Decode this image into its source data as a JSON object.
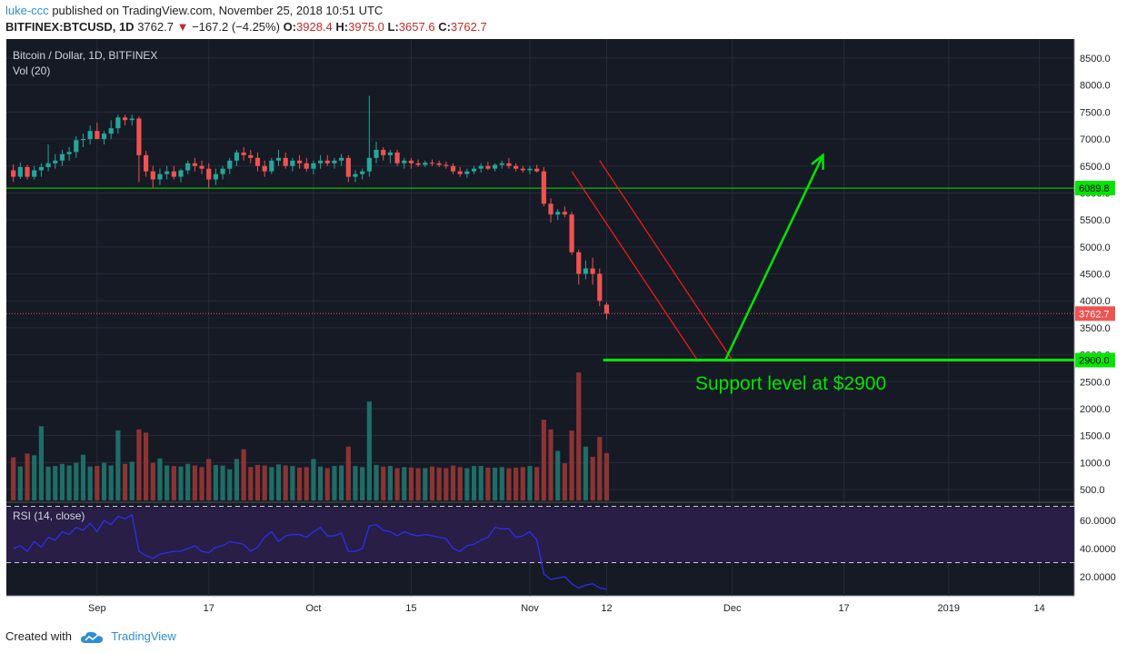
{
  "header": {
    "user": "luke-ccc",
    "published_text": "published on TradingView.com, November 25, 2018 10:51 UTC",
    "symbol": "BITFINEX:BTCUSD, 1D",
    "last": "3762.7",
    "change_arrow": "▼",
    "change": "−167.2 (−4.25%)",
    "o_label": "O:",
    "o": "3928.4",
    "h_label": "H:",
    "h": "3975.0",
    "l_label": "L:",
    "l": "3657.6",
    "c_label": "C:",
    "c": "3762.7"
  },
  "footer": {
    "created_with": "Created with",
    "brand": "TradingView",
    "logo_icon": "tradingview-cloud-icon"
  },
  "colors": {
    "background": "#161a25",
    "grid": "#262b3a",
    "up": "#26a69a",
    "down": "#ef5350",
    "vol_up": "#1f6d66",
    "vol_down": "#8b3434",
    "support": "#00e600",
    "rsi_line": "#2e2ef0",
    "rsi_band": "#2a1f4a",
    "channel": "#ff1a1a",
    "axis_text": "#d1d4dc"
  },
  "chart_data": {
    "type": "candlestick",
    "title": "Bitcoin / Dollar, 1D, BITFINEX",
    "volume_label": "Vol (20)",
    "rsi_label": "RSI (14, close)",
    "y_ticks": [
      8500,
      8000,
      7500,
      7000,
      6500,
      6000,
      5500,
      5000,
      4500,
      4000,
      3500,
      3000,
      2500,
      2000,
      1500,
      1000,
      500
    ],
    "y_tick_labels": [
      "8500.0",
      "8000.0",
      "7500.0",
      "7000.0",
      "6500.0",
      "6000.0",
      "5500.0",
      "5000.0",
      "4500.0",
      "4000.0",
      "3500.0",
      "3000.0",
      "2500.0",
      "2000.0",
      "1500.0",
      "1000.0",
      "500.0"
    ],
    "rsi_ticks": [
      60,
      40,
      20
    ],
    "rsi_tick_labels": [
      "60.0000",
      "40.0000",
      "20.0000"
    ],
    "x_ticks": [
      {
        "label": "Sep",
        "day": 12
      },
      {
        "label": "17",
        "day": 28
      },
      {
        "label": "Oct",
        "day": 43
      },
      {
        "label": "15",
        "day": 57
      },
      {
        "label": "Nov",
        "day": 74
      },
      {
        "label": "12",
        "day": 85
      },
      {
        "label": "Dec",
        "day": 103
      },
      {
        "label": "17",
        "day": 119
      },
      {
        "label": "2019",
        "day": 134
      },
      {
        "label": "14",
        "day": 147
      }
    ],
    "x_range_days": [
      -1,
      152
    ],
    "candles": [
      [
        6420,
        6530,
        6200,
        6300
      ],
      [
        6300,
        6560,
        6260,
        6480
      ],
      [
        6480,
        6520,
        6250,
        6300
      ],
      [
        6300,
        6500,
        6250,
        6420
      ],
      [
        6420,
        6550,
        6300,
        6480
      ],
      [
        6480,
        6900,
        6400,
        6550
      ],
      [
        6550,
        6720,
        6450,
        6600
      ],
      [
        6600,
        6800,
        6500,
        6720
      ],
      [
        6720,
        6850,
        6600,
        6760
      ],
      [
        6760,
        7050,
        6650,
        6980
      ],
      [
        6980,
        7100,
        6850,
        7000
      ],
      [
        7000,
        7250,
        6900,
        7150
      ],
      [
        7150,
        7300,
        7000,
        7000
      ],
      [
        7000,
        7150,
        6900,
        7100
      ],
      [
        7100,
        7350,
        7000,
        7200
      ],
      [
        7200,
        7450,
        7100,
        7400
      ],
      [
        7400,
        7450,
        7250,
        7350
      ],
      [
        7350,
        7450,
        7250,
        7380
      ],
      [
        7380,
        7420,
        6200,
        6700
      ],
      [
        6700,
        6780,
        6300,
        6400
      ],
      [
        6400,
        6500,
        6100,
        6250
      ],
      [
        6250,
        6450,
        6150,
        6350
      ],
      [
        6350,
        6500,
        6250,
        6400
      ],
      [
        6400,
        6500,
        6250,
        6300
      ],
      [
        6300,
        6450,
        6200,
        6420
      ],
      [
        6420,
        6600,
        6350,
        6550
      ],
      [
        6550,
        6650,
        6400,
        6500
      ],
      [
        6500,
        6600,
        6350,
        6450
      ],
      [
        6450,
        6550,
        6100,
        6250
      ],
      [
        6250,
        6450,
        6150,
        6350
      ],
      [
        6350,
        6500,
        6250,
        6450
      ],
      [
        6450,
        6650,
        6350,
        6600
      ],
      [
        6600,
        6800,
        6500,
        6750
      ],
      [
        6750,
        6850,
        6600,
        6700
      ],
      [
        6700,
        6800,
        6550,
        6650
      ],
      [
        6650,
        6750,
        6400,
        6500
      ],
      [
        6500,
        6600,
        6300,
        6400
      ],
      [
        6400,
        6650,
        6350,
        6600
      ],
      [
        6600,
        6800,
        6500,
        6650
      ],
      [
        6650,
        6750,
        6450,
        6500
      ],
      [
        6500,
        6650,
        6400,
        6600
      ],
      [
        6600,
        6700,
        6450,
        6550
      ],
      [
        6550,
        6650,
        6400,
        6450
      ],
      [
        6450,
        6600,
        6350,
        6550
      ],
      [
        6550,
        6700,
        6450,
        6600
      ],
      [
        6600,
        6700,
        6500,
        6550
      ],
      [
        6550,
        6650,
        6450,
        6600
      ],
      [
        6600,
        6720,
        6500,
        6650
      ],
      [
        6650,
        6700,
        6200,
        6300
      ],
      [
        6300,
        6420,
        6200,
        6350
      ],
      [
        6350,
        6450,
        6250,
        6400
      ],
      [
        6400,
        7800,
        6300,
        6650
      ],
      [
        6650,
        6950,
        6550,
        6800
      ],
      [
        6800,
        6850,
        6600,
        6700
      ],
      [
        6700,
        6800,
        6550,
        6750
      ],
      [
        6750,
        6800,
        6500,
        6550
      ],
      [
        6550,
        6650,
        6450,
        6600
      ],
      [
        6600,
        6650,
        6450,
        6550
      ],
      [
        6550,
        6620,
        6480,
        6520
      ],
      [
        6520,
        6600,
        6480,
        6560
      ],
      [
        6560,
        6620,
        6500,
        6550
      ],
      [
        6550,
        6600,
        6480,
        6520
      ],
      [
        6520,
        6580,
        6450,
        6500
      ],
      [
        6500,
        6550,
        6350,
        6400
      ],
      [
        6400,
        6480,
        6300,
        6350
      ],
      [
        6350,
        6450,
        6280,
        6400
      ],
      [
        6400,
        6500,
        6350,
        6450
      ],
      [
        6450,
        6550,
        6380,
        6500
      ],
      [
        6500,
        6580,
        6420,
        6450
      ],
      [
        6450,
        6550,
        6400,
        6520
      ],
      [
        6520,
        6600,
        6450,
        6550
      ],
      [
        6550,
        6650,
        6450,
        6500
      ],
      [
        6500,
        6550,
        6400,
        6450
      ],
      [
        6450,
        6500,
        6380,
        6420
      ],
      [
        6420,
        6500,
        6350,
        6450
      ],
      [
        6450,
        6520,
        6380,
        6400
      ],
      [
        6400,
        6480,
        5750,
        5800
      ],
      [
        5800,
        5900,
        5450,
        5600
      ],
      [
        5600,
        5700,
        5500,
        5650
      ],
      [
        5650,
        5750,
        5550,
        5600
      ],
      [
        5600,
        5650,
        4850,
        4900
      ],
      [
        4900,
        4950,
        4300,
        4500
      ],
      [
        4500,
        4750,
        4400,
        4600
      ],
      [
        4600,
        4800,
        4300,
        4500
      ],
      [
        4500,
        4600,
        3900,
        4000
      ],
      [
        3928.4,
        3975.0,
        3657.6,
        3762.7
      ]
    ],
    "volumes": [
      800,
      630,
      870,
      840,
      1380,
      630,
      640,
      680,
      650,
      700,
      850,
      630,
      640,
      700,
      650,
      1300,
      680,
      720,
      1320,
      1260,
      700,
      780,
      650,
      640,
      630,
      680,
      650,
      620,
      770,
      660,
      650,
      580,
      770,
      950,
      620,
      660,
      650,
      620,
      670,
      650,
      640,
      610,
      620,
      770,
      630,
      600,
      640,
      650,
      1000,
      640,
      620,
      1840,
      660,
      630,
      640,
      600,
      620,
      610,
      600,
      600,
      630,
      610,
      600,
      650,
      620,
      600,
      640,
      640,
      610,
      610,
      620,
      600,
      610,
      620,
      640,
      620,
      1500,
      1320,
      920,
      690,
      1300,
      2380,
      1000,
      810,
      1180,
      880
    ],
    "rsi": [
      40,
      42,
      38,
      45,
      41,
      48,
      46,
      52,
      50,
      55,
      53,
      58,
      52,
      60,
      57,
      63,
      61,
      64,
      38,
      35,
      33,
      36,
      37,
      38,
      38,
      40,
      42,
      38,
      37,
      41,
      42,
      45,
      44,
      43,
      38,
      41,
      48,
      52,
      45,
      49,
      50,
      50,
      48,
      52,
      55,
      49,
      49,
      51,
      38,
      38,
      40,
      56,
      57,
      53,
      52,
      49,
      52,
      50,
      49,
      50,
      49,
      48,
      47,
      40,
      38,
      42,
      43,
      46,
      48,
      55,
      54,
      54,
      48,
      49,
      52,
      46,
      22,
      18,
      19,
      20,
      15,
      12,
      14,
      15,
      12,
      11
    ],
    "price_line": {
      "value": 3762.7,
      "label": "3762.7"
    },
    "resistance_line": {
      "value": 6089.8,
      "label": "6089.8"
    },
    "support_line": {
      "value": 2900.0,
      "label": "2900.0"
    },
    "annotation": "Support level at $2900",
    "channel": {
      "upper": [
        [
          84,
          6600
        ],
        [
          103,
          2900
        ]
      ],
      "lower": [
        [
          80,
          6400
        ],
        [
          98,
          2900
        ]
      ]
    },
    "projection_arrow": [
      [
        102,
        2900
      ],
      [
        116,
        6700
      ]
    ]
  }
}
